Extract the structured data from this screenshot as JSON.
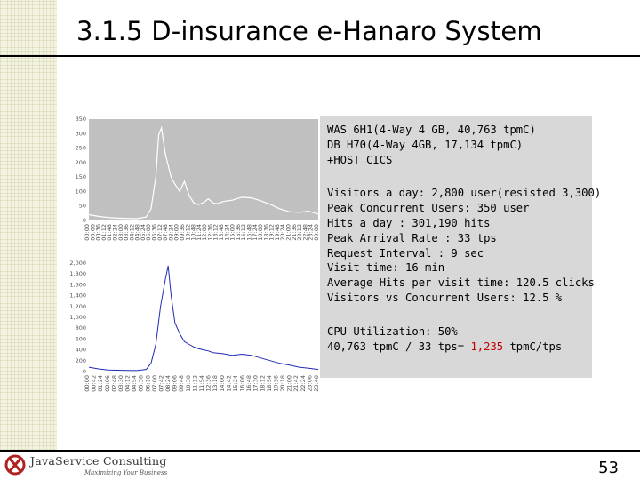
{
  "slide": {
    "title": "3.1.5  D-insurance e-Hanaro System",
    "page_number": "53"
  },
  "info": {
    "system": [
      "WAS 6H1(4-Way 4 GB, 40,763 tpmC)",
      "DB H70(4-Way 4GB, 17,134 tpmC)",
      "+HOST CICS"
    ],
    "stats": [
      "Visitors a day: 2,800 user(resisted 3,300)",
      "Peak Concurrent Users: 350   user",
      "Hits a day : 301,190 hits",
      "Peak Arrival Rate : 33  tps",
      "Request Interval : 9 sec",
      "Visit time: 16 min",
      "Average Hits per visit time: 120.5 clicks",
      "Visitors vs Concurrent Users: 12.5 %"
    ],
    "cpu_utilization": "CPU Utilization: 50%",
    "calc_prefix": "40,763  tpmC / 33 tps= ",
    "calc_value": "1,235",
    "calc_suffix": " tpmC/tps"
  },
  "logo": {
    "name": "JavaService Consulting",
    "tagline": "Maximizing Your Business"
  },
  "colors": {
    "info_box": "#d8d8d8",
    "chart_top_bg": "#c0c0c0",
    "chart_top_line": "#ffffff",
    "chart_bottom_line": "#1f2bb4",
    "highlight": "#c00000",
    "logo_red": "#b22222"
  },
  "chart_data": [
    {
      "type": "line",
      "series_color": "white",
      "ylim": [
        0,
        350
      ],
      "y_ticks": [
        "350",
        "300",
        "250",
        "200",
        "150",
        "100",
        "50",
        "0"
      ],
      "x_ticks": [
        "00:00",
        "00:00",
        "00:36",
        "01:12",
        "01:48",
        "02:24",
        "03:00",
        "03:36",
        "04:12",
        "04:48",
        "05:24",
        "06:00",
        "06:36",
        "07:12",
        "07:48",
        "08:24",
        "09:00",
        "09:36",
        "10:12",
        "10:48",
        "11:24",
        "12:00",
        "12:36",
        "13:12",
        "13:48",
        "14:24",
        "15:00",
        "15:36",
        "16:12",
        "16:48",
        "17:24",
        "18:00",
        "18:36",
        "19:12",
        "19:48",
        "20:24",
        "21:00",
        "21:36",
        "22:12",
        "22:48",
        "23:24",
        "00:00"
      ],
      "x": [
        0,
        1,
        2,
        3,
        4,
        5,
        6,
        6.5,
        7,
        7.3,
        7.6,
        8,
        8.3,
        8.6,
        9,
        9.5,
        10,
        10.5,
        11,
        11.5,
        12,
        12.5,
        13,
        13.5,
        14,
        15,
        16,
        17,
        18,
        19,
        20,
        21,
        22,
        23,
        24
      ],
      "values": [
        20,
        14,
        10,
        8,
        7,
        6,
        12,
        40,
        150,
        295,
        320,
        230,
        190,
        150,
        125,
        100,
        135,
        85,
        60,
        55,
        62,
        75,
        60,
        58,
        65,
        70,
        80,
        78,
        68,
        55,
        40,
        30,
        28,
        32,
        22
      ]
    },
    {
      "type": "line",
      "series_color": "blue",
      "ylim": [
        0,
        2000
      ],
      "y_ticks": [
        "2,000",
        "1,800",
        "1,600",
        "1,400",
        "1,200",
        "1,000",
        "800",
        "600",
        "400",
        "200",
        "0"
      ],
      "x_ticks": [
        "00:00",
        "00:42",
        "01:24",
        "02:06",
        "02:48",
        "03:30",
        "04:12",
        "04:54",
        "05:36",
        "06:18",
        "07:00",
        "07:42",
        "08:24",
        "09:06",
        "09:48",
        "10:30",
        "11:12",
        "11:54",
        "12:36",
        "13:18",
        "14:00",
        "14:42",
        "15:24",
        "16:06",
        "16:48",
        "17:30",
        "18:12",
        "18:54",
        "19:36",
        "20:18",
        "21:00",
        "21:42",
        "22:24",
        "23:06",
        "23:48"
      ],
      "x": [
        0,
        1,
        2,
        3,
        4,
        5,
        6,
        6.5,
        7,
        7.5,
        8,
        8.3,
        8.6,
        9,
        9.5,
        10,
        10.5,
        11,
        11.5,
        12,
        12.5,
        13,
        14,
        15,
        16,
        17,
        18,
        19,
        20,
        21,
        22,
        23,
        24
      ],
      "values": [
        80,
        50,
        30,
        25,
        20,
        18,
        40,
        150,
        500,
        1200,
        1700,
        1950,
        1400,
        900,
        700,
        550,
        500,
        450,
        420,
        400,
        380,
        350,
        330,
        300,
        320,
        300,
        250,
        200,
        150,
        120,
        80,
        60,
        40
      ]
    }
  ]
}
